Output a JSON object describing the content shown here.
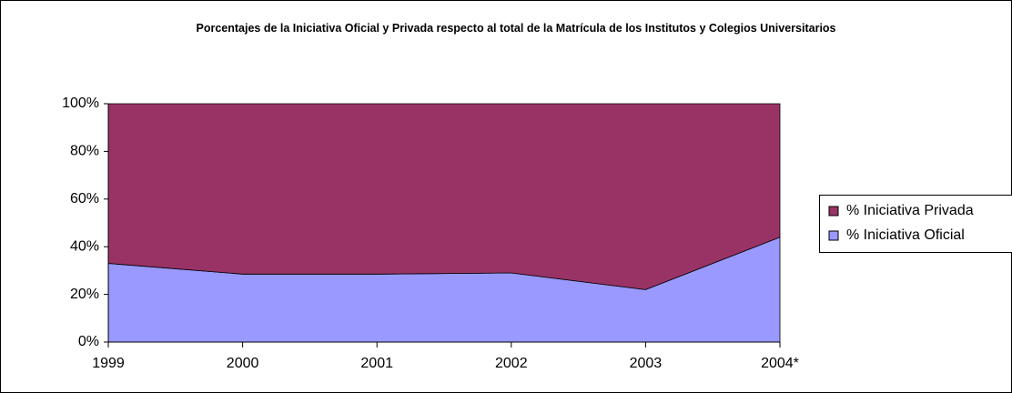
{
  "chart_data": {
    "type": "area",
    "title": "Porcentajes de la Iniciativa Oficial y Privada respecto al total de la Matrícula de los Institutos y Colegios Universitarios",
    "categories": [
      "1999",
      "2000",
      "2001",
      "2002",
      "2003",
      "2004*"
    ],
    "series": [
      {
        "name": "% Iniciativa Oficial",
        "color": "#9999ff",
        "values": [
          33,
          28.5,
          28.5,
          29,
          22,
          44
        ]
      },
      {
        "name": "% Iniciativa Privada",
        "color": "#993366",
        "values": [
          67,
          71.5,
          71.5,
          71,
          78,
          56
        ]
      }
    ],
    "stacked": true,
    "ylim": [
      0,
      100
    ],
    "yticks": [
      {
        "value": 0,
        "label": "0%"
      },
      {
        "value": 20,
        "label": "20%"
      },
      {
        "value": 40,
        "label": "40%"
      },
      {
        "value": 60,
        "label": "60%"
      },
      {
        "value": 80,
        "label": "80%"
      },
      {
        "value": 100,
        "label": "100%"
      }
    ],
    "legend": "right"
  }
}
